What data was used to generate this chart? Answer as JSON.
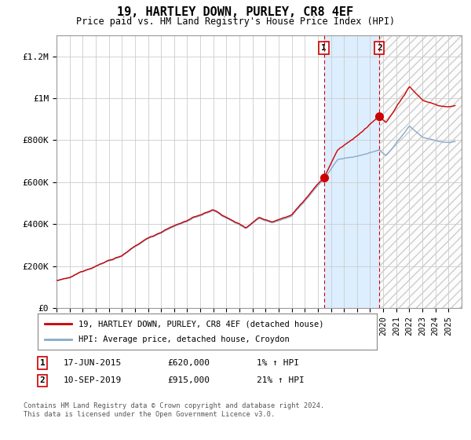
{
  "title": "19, HARTLEY DOWN, PURLEY, CR8 4EF",
  "subtitle": "Price paid vs. HM Land Registry's House Price Index (HPI)",
  "ylim": [
    0,
    1300000
  ],
  "yticks": [
    0,
    200000,
    400000,
    600000,
    800000,
    1000000,
    1200000
  ],
  "ytick_labels": [
    "£0",
    "£200K",
    "£400K",
    "£600K",
    "£800K",
    "£1M",
    "£1.2M"
  ],
  "x_start_year": 1995,
  "x_end_year": 2026,
  "sale1_date": 2015.458,
  "sale1_price": 620000,
  "sale1_label": "1",
  "sale2_date": 2019.708,
  "sale2_price": 915000,
  "sale2_label": "2",
  "line_color_red": "#cc0000",
  "line_color_blue": "#88aacc",
  "annotation_box_color": "#cc0000",
  "shaded_region_color": "#ddeeff",
  "legend_label_red": "19, HARTLEY DOWN, PURLEY, CR8 4EF (detached house)",
  "legend_label_blue": "HPI: Average price, detached house, Croydon",
  "footer_text": "Contains HM Land Registry data © Crown copyright and database right 2024.\nThis data is licensed under the Open Government Licence v3.0.",
  "bg_color": "#ffffff",
  "grid_color": "#cccccc",
  "sale1_date_str": "17-JUN-2015",
  "sale1_price_str": "£620,000",
  "sale1_hpi_str": "1% ↑ HPI",
  "sale2_date_str": "10-SEP-2019",
  "sale2_price_str": "£915,000",
  "sale2_hpi_str": "21% ↑ HPI"
}
